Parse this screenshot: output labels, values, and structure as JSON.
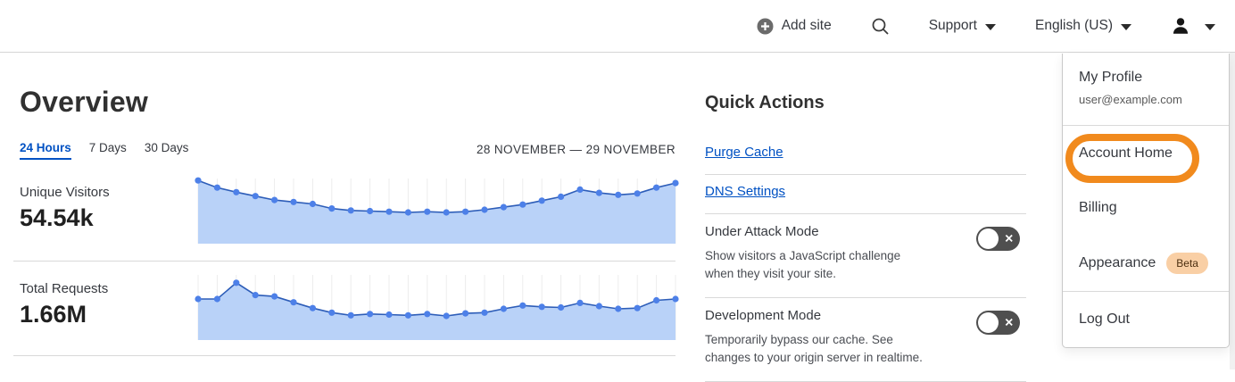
{
  "header": {
    "add_site": "Add site",
    "support": "Support",
    "language": "English (US)"
  },
  "overview": {
    "title": "Overview",
    "tabs": [
      {
        "label": "24 Hours",
        "active": true
      },
      {
        "label": "7 Days",
        "active": false
      },
      {
        "label": "30 Days",
        "active": false
      }
    ],
    "date_range": "28 NOVEMBER — 29 NOVEMBER",
    "stats": [
      {
        "label": "Unique Visitors",
        "value": "54.54k"
      },
      {
        "label": "Total Requests",
        "value": "1.66M"
      }
    ]
  },
  "quick_actions": {
    "title": "Quick Actions",
    "links": [
      "Purge Cache",
      "DNS Settings"
    ],
    "toggles": [
      {
        "label": "Under Attack Mode",
        "description_lines": [
          "Show visitors a JavaScript challenge",
          "when they visit your site."
        ],
        "state": "off"
      },
      {
        "label": "Development Mode",
        "description_lines": [
          "Temporarily bypass our cache. See",
          "changes to your origin server in realtime."
        ],
        "state": "off"
      }
    ]
  },
  "user_menu": {
    "profile_label": "My Profile",
    "profile_email": "user@example.com",
    "items": [
      {
        "label": "Account Home",
        "highlighted": true
      },
      {
        "label": "Billing"
      },
      {
        "label": "Appearance",
        "badge": "Beta"
      },
      {
        "label": "Log Out"
      }
    ]
  },
  "chart_data": [
    {
      "type": "area",
      "title": "Unique Visitors",
      "total": "54.54k",
      "xlabel": "",
      "ylabel": "",
      "ylim": [
        0,
        100
      ],
      "unit": "relative height %, no axis labels shown",
      "grid": "vertical",
      "values": [
        97,
        86,
        79,
        73,
        67,
        64,
        61,
        54,
        51,
        50,
        49,
        48,
        49,
        48,
        49,
        52,
        56,
        60,
        66,
        72,
        83,
        78,
        75,
        77,
        86,
        93
      ]
    },
    {
      "type": "area",
      "title": "Total Requests",
      "total": "1.66M",
      "xlabel": "",
      "ylabel": "",
      "ylim": [
        0,
        100
      ],
      "unit": "relative height %, no axis labels shown",
      "grid": "vertical",
      "values": [
        63,
        63,
        88,
        69,
        67,
        58,
        49,
        42,
        38,
        40,
        39,
        38,
        40,
        37,
        41,
        42,
        48,
        53,
        51,
        50,
        57,
        52,
        48,
        49,
        61,
        63
      ]
    }
  ],
  "colors": {
    "link_blue": "#0051c3",
    "chart_fill": "#b9d2f8",
    "chart_line": "#2d5db8",
    "chart_dot": "#4d80e8",
    "gridline": "#ececec",
    "toggle_bg": "#4f4f4f",
    "annotation_orange": "#f18a1d",
    "badge_bg": "#f9cfa5"
  }
}
